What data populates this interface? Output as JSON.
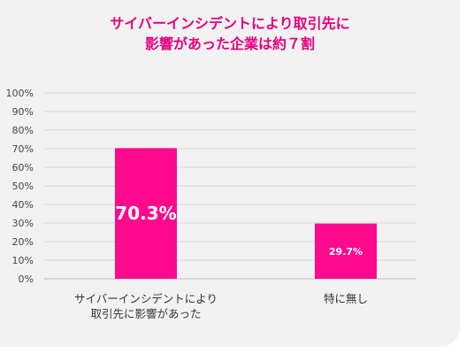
{
  "chart_data": {
    "type": "bar",
    "title_lines": [
      "サイバーインシデントにより取引先に",
      "影響があった企業は約７割"
    ],
    "categories": [
      [
        "サイバーインシデントにより",
        "取引先に影響があった"
      ],
      [
        "特に無し"
      ]
    ],
    "values": [
      70.3,
      29.7
    ],
    "value_labels": [
      "70.3%",
      "29.7%"
    ],
    "yticks": [
      "0%",
      "10%",
      "20%",
      "30%",
      "40%",
      "50%",
      "60%",
      "70%",
      "80%",
      "90%",
      "100%"
    ],
    "ylim": [
      0,
      100
    ],
    "grid": true,
    "bar_color": "#ff0a8c",
    "title_color": "#e6007e"
  }
}
